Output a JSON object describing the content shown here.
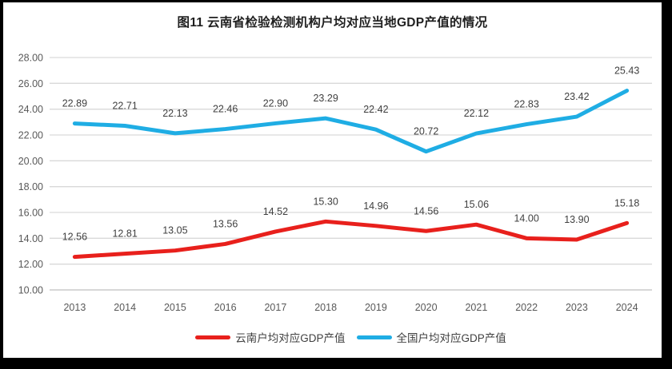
{
  "chart_data": {
    "type": "line",
    "title": "图11 云南省检验检测机构户均对应当地GDP产值的情况",
    "categories": [
      "2013",
      "2014",
      "2015",
      "2016",
      "2017",
      "2018",
      "2019",
      "2020",
      "2021",
      "2022",
      "2023",
      "2024"
    ],
    "series": [
      {
        "key": "yunnan",
        "name": "云南户均对应GDP产值",
        "color": "#e8201c",
        "values": [
          12.56,
          12.81,
          13.05,
          13.56,
          14.52,
          15.3,
          14.96,
          14.56,
          15.06,
          14.0,
          13.9,
          15.18
        ]
      },
      {
        "key": "national",
        "name": "全国户均对应GDP产值",
        "color": "#1fade4",
        "values": [
          22.89,
          22.71,
          22.13,
          22.46,
          22.9,
          23.29,
          22.42,
          20.72,
          22.12,
          22.83,
          23.42,
          25.43
        ]
      }
    ],
    "ylim": [
      10,
      28
    ],
    "yticks": [
      "10.00",
      "12.00",
      "14.00",
      "16.00",
      "18.00",
      "20.00",
      "22.00",
      "24.00",
      "26.00",
      "28.00"
    ],
    "xlabel": "",
    "ylabel": "",
    "grid": "horizontal",
    "legend_position": "bottom",
    "data_labels": true,
    "label_format": "0.00"
  },
  "colors": {
    "frame": "#000000",
    "background": "#ffffff",
    "gridline": "#d9d9d9",
    "axis_line": "#bfbfbf",
    "tick_text": "#595959",
    "label_text": "#3f3f3f",
    "title_text": "#1f1f1f"
  }
}
